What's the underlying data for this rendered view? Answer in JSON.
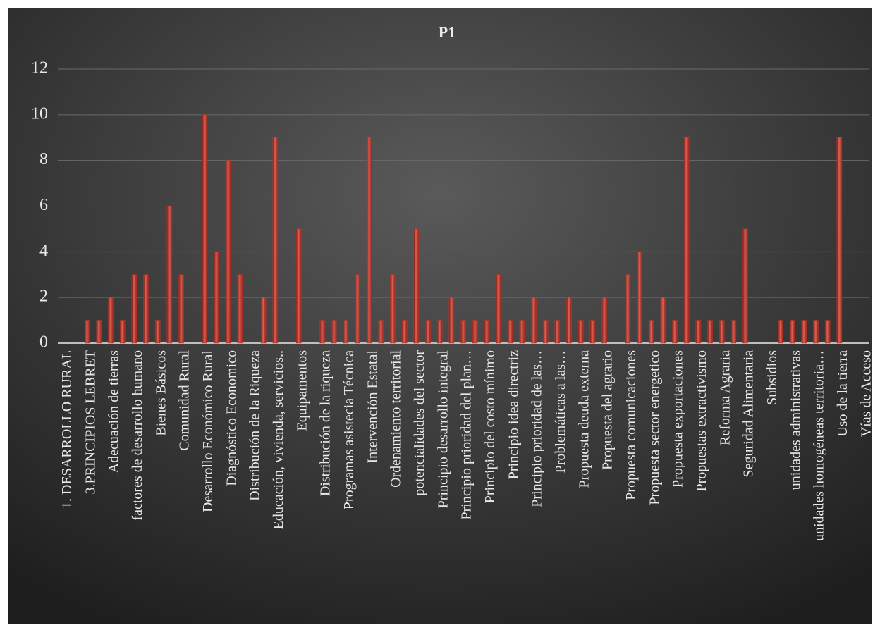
{
  "chart_data": {
    "type": "bar",
    "title": "P1",
    "categories": [
      "1. DESARROLLO RURAL",
      null,
      "3.PRINCIPIOS LEBRET",
      null,
      "Adecuación de tierras",
      null,
      "factores de desarrollo humano",
      null,
      "Bienes Básicos",
      null,
      "Comunidad Rural",
      null,
      "Desarrollo Económico Rural",
      null,
      "Diagnóstico Economico",
      null,
      "Distribución de la Riqueza",
      null,
      "Educación, vivienda, servicios..",
      null,
      "Equipamentos",
      null,
      "Distribución de la riqueza",
      null,
      "Programas asistecia Técnica",
      null,
      "Intervención Estatal",
      null,
      "Ordenamiento territorial",
      null,
      "potencialidades del sector",
      null,
      "Principio  desarrollo integral",
      null,
      "Principio prioridad del plan…",
      null,
      "Principio del costo mínimo",
      null,
      "Principio idea directriz",
      null,
      "Principio prioridad de las…",
      null,
      "Problemáticas a las…",
      null,
      "Propuesta  deuda externa",
      null,
      "Propuesta del agrario",
      null,
      "Propuesta  comunicaciones",
      null,
      "Propuesta sector energetico",
      null,
      "Propuesta exportaciones",
      null,
      "Propuestas  extractivismo",
      null,
      "Reforma Agraria",
      null,
      "Seguridad Alimentaria",
      null,
      "Subsidios",
      null,
      "unidades administrativas",
      null,
      "unidades homogéneas territoria…",
      null,
      "Uso de la tierra",
      null,
      "Vías de Acceso"
    ],
    "values": [
      0,
      0,
      1,
      1,
      2,
      1,
      3,
      3,
      1,
      6,
      3,
      0,
      10,
      4,
      8,
      3,
      0,
      2,
      9,
      0,
      5,
      0,
      1,
      1,
      1,
      3,
      9,
      1,
      3,
      1,
      5,
      1,
      1,
      2,
      1,
      1,
      1,
      3,
      1,
      1,
      2,
      1,
      1,
      2,
      1,
      1,
      2,
      0,
      3,
      4,
      1,
      2,
      1,
      9,
      1,
      1,
      1,
      1,
      5,
      0,
      0,
      1,
      1,
      1,
      1,
      1,
      9,
      0,
      0
    ],
    "color": "#c0392b",
    "ylim": [
      0,
      12
    ],
    "yticks": [
      0,
      2,
      4,
      6,
      8,
      10,
      12
    ],
    "grid": true
  }
}
